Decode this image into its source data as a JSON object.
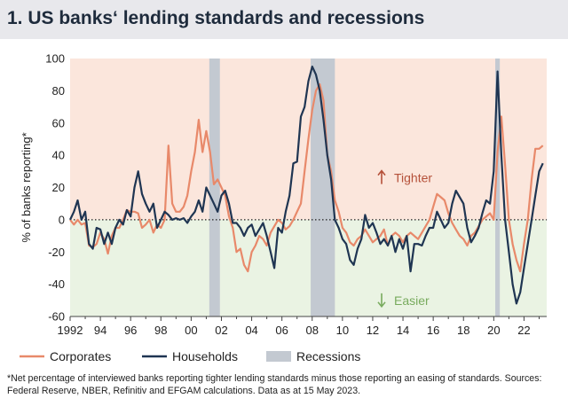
{
  "title": "1. US banks‘ lending standards and recessions",
  "footnote": "*Net percentage of interviewed banks reporting tighter lending standards minus those reporting an easing of standards. Sources: Federal Reserve, NBER, Refinitiv and EFGAM calculations. Data as at 15 May 2023.",
  "chart_data": {
    "type": "line",
    "title": "US banks' lending standards and recessions",
    "ylabel": "% of banks reporting*",
    "xlabel": "",
    "ylim": [
      -60,
      100
    ],
    "xlim": [
      1992,
      2023.5
    ],
    "yticks": [
      100,
      80,
      60,
      40,
      20,
      0,
      -20,
      -40,
      -60
    ],
    "xticks": [
      {
        "value": 1992,
        "label": "1992"
      },
      {
        "value": 1994,
        "label": "94"
      },
      {
        "value": 1996,
        "label": "96"
      },
      {
        "value": 1998,
        "label": "98"
      },
      {
        "value": 2000,
        "label": "00"
      },
      {
        "value": 2002,
        "label": "02"
      },
      {
        "value": 2004,
        "label": "04"
      },
      {
        "value": 2006,
        "label": "06"
      },
      {
        "value": 2008,
        "label": "08"
      },
      {
        "value": 2010,
        "label": "10"
      },
      {
        "value": 2012,
        "label": "12"
      },
      {
        "value": 2014,
        "label": "14"
      },
      {
        "value": 2016,
        "label": "16"
      },
      {
        "value": 2018,
        "label": "18"
      },
      {
        "value": 2020,
        "label": "20"
      },
      {
        "value": 2022,
        "label": "22"
      }
    ],
    "annotations": {
      "tighter": "Tighter",
      "easier": "Easier"
    },
    "legend": {
      "corporates": "Corporates",
      "households": "Households",
      "recessions": "Recessions"
    },
    "colors": {
      "corporates": "#e8896a",
      "households": "#1f3552",
      "recessions": "#c3c9d1",
      "tighter_zone": "#fbe6dc",
      "easier_zone": "#eaf3e3",
      "tighter_text": "#b5513a",
      "easier_text": "#78ab5e"
    },
    "recessions": [
      [
        2001.2,
        2001.9
      ],
      [
        2007.9,
        2009.5
      ],
      [
        2020.1,
        2020.4
      ]
    ],
    "series": [
      {
        "name": "Corporates",
        "points": [
          [
            1992,
            0
          ],
          [
            1992.25,
            -3
          ],
          [
            1992.5,
            0
          ],
          [
            1992.75,
            -3
          ],
          [
            1993,
            -2
          ],
          [
            1993.25,
            -16
          ],
          [
            1993.5,
            -17
          ],
          [
            1993.75,
            -15
          ],
          [
            1994,
            -8
          ],
          [
            1994.25,
            -12
          ],
          [
            1994.5,
            -21
          ],
          [
            1994.75,
            -10
          ],
          [
            1995,
            -5
          ],
          [
            1995.25,
            -5
          ],
          [
            1995.5,
            0
          ],
          [
            1995.75,
            6
          ],
          [
            1996,
            5
          ],
          [
            1996.25,
            5
          ],
          [
            1996.5,
            4
          ],
          [
            1996.75,
            -5
          ],
          [
            1997,
            -3
          ],
          [
            1997.25,
            0
          ],
          [
            1997.5,
            -8
          ],
          [
            1997.75,
            -3
          ],
          [
            1998,
            -5
          ],
          [
            1998.25,
            0
          ],
          [
            1998.5,
            46
          ],
          [
            1998.75,
            10
          ],
          [
            1999,
            5
          ],
          [
            1999.25,
            5
          ],
          [
            1999.5,
            8
          ],
          [
            1999.75,
            15
          ],
          [
            2000,
            30
          ],
          [
            2000.25,
            42
          ],
          [
            2000.5,
            62
          ],
          [
            2000.75,
            42
          ],
          [
            2001,
            55
          ],
          [
            2001.25,
            42
          ],
          [
            2001.5,
            22
          ],
          [
            2001.75,
            25
          ],
          [
            2002,
            20
          ],
          [
            2002.25,
            15
          ],
          [
            2002.5,
            2
          ],
          [
            2002.75,
            -5
          ],
          [
            2003,
            -20
          ],
          [
            2003.25,
            -18
          ],
          [
            2003.5,
            -28
          ],
          [
            2003.75,
            -32
          ],
          [
            2004,
            -20
          ],
          [
            2004.25,
            -16
          ],
          [
            2004.5,
            -10
          ],
          [
            2004.75,
            -12
          ],
          [
            2005,
            -16
          ],
          [
            2005.25,
            -8
          ],
          [
            2005.5,
            -4
          ],
          [
            2005.75,
            0
          ],
          [
            2006,
            -2
          ],
          [
            2006.25,
            -6
          ],
          [
            2006.5,
            -4
          ],
          [
            2006.75,
            0
          ],
          [
            2007,
            5
          ],
          [
            2007.25,
            10
          ],
          [
            2007.5,
            30
          ],
          [
            2007.75,
            50
          ],
          [
            2008,
            68
          ],
          [
            2008.25,
            80
          ],
          [
            2008.5,
            84
          ],
          [
            2008.75,
            74
          ],
          [
            2009,
            40
          ],
          [
            2009.25,
            30
          ],
          [
            2009.5,
            12
          ],
          [
            2009.75,
            5
          ],
          [
            2010,
            -5
          ],
          [
            2010.25,
            -8
          ],
          [
            2010.5,
            -14
          ],
          [
            2010.75,
            -16
          ],
          [
            2011,
            -12
          ],
          [
            2011.25,
            -10
          ],
          [
            2011.5,
            -6
          ],
          [
            2011.75,
            -10
          ],
          [
            2012,
            -14
          ],
          [
            2012.25,
            -12
          ],
          [
            2012.5,
            -10
          ],
          [
            2012.75,
            -6
          ],
          [
            2013,
            -16
          ],
          [
            2013.25,
            -10
          ],
          [
            2013.5,
            -8
          ],
          [
            2013.75,
            -10
          ],
          [
            2014,
            -14
          ],
          [
            2014.25,
            -10
          ],
          [
            2014.5,
            -8
          ],
          [
            2014.75,
            -10
          ],
          [
            2015,
            -12
          ],
          [
            2015.25,
            -8
          ],
          [
            2015.5,
            -4
          ],
          [
            2015.75,
            0
          ],
          [
            2016,
            8
          ],
          [
            2016.25,
            16
          ],
          [
            2016.5,
            14
          ],
          [
            2016.75,
            12
          ],
          [
            2017,
            4
          ],
          [
            2017.25,
            -2
          ],
          [
            2017.5,
            -6
          ],
          [
            2017.75,
            -10
          ],
          [
            2018,
            -12
          ],
          [
            2018.25,
            -16
          ],
          [
            2018.5,
            -10
          ],
          [
            2018.75,
            -8
          ],
          [
            2019,
            -4
          ],
          [
            2019.25,
            0
          ],
          [
            2019.5,
            2
          ],
          [
            2019.75,
            4
          ],
          [
            2020,
            0
          ],
          [
            2020.25,
            42
          ],
          [
            2020.5,
            64
          ],
          [
            2020.75,
            34
          ],
          [
            2021,
            0
          ],
          [
            2021.25,
            -15
          ],
          [
            2021.5,
            -25
          ],
          [
            2021.75,
            -32
          ],
          [
            2022,
            -15
          ],
          [
            2022.25,
            0
          ],
          [
            2022.5,
            25
          ],
          [
            2022.75,
            44
          ],
          [
            2023,
            44
          ],
          [
            2023.25,
            46
          ]
        ]
      },
      {
        "name": "Households",
        "points": [
          [
            1992,
            0
          ],
          [
            1992.25,
            5
          ],
          [
            1992.5,
            12
          ],
          [
            1992.75,
            0
          ],
          [
            1993,
            5
          ],
          [
            1993.25,
            -15
          ],
          [
            1993.5,
            -18
          ],
          [
            1993.75,
            -5
          ],
          [
            1994,
            -6
          ],
          [
            1994.25,
            -15
          ],
          [
            1994.5,
            -8
          ],
          [
            1994.75,
            -15
          ],
          [
            1995,
            -5
          ],
          [
            1995.25,
            0
          ],
          [
            1995.5,
            -3
          ],
          [
            1995.75,
            6
          ],
          [
            1996,
            2
          ],
          [
            1996.25,
            20
          ],
          [
            1996.5,
            30
          ],
          [
            1996.75,
            16
          ],
          [
            1997,
            10
          ],
          [
            1997.25,
            5
          ],
          [
            1997.5,
            10
          ],
          [
            1997.75,
            -5
          ],
          [
            1998,
            0
          ],
          [
            1998.25,
            5
          ],
          [
            1998.5,
            3
          ],
          [
            1998.75,
            0
          ],
          [
            1999,
            1
          ],
          [
            1999.25,
            0
          ],
          [
            1999.5,
            1
          ],
          [
            1999.75,
            -2
          ],
          [
            2000,
            2
          ],
          [
            2000.25,
            5
          ],
          [
            2000.5,
            12
          ],
          [
            2000.75,
            5
          ],
          [
            2001,
            20
          ],
          [
            2001.25,
            15
          ],
          [
            2001.5,
            10
          ],
          [
            2001.75,
            5
          ],
          [
            2002,
            15
          ],
          [
            2002.25,
            18
          ],
          [
            2002.5,
            10
          ],
          [
            2002.75,
            -2
          ],
          [
            2003,
            -2
          ],
          [
            2003.25,
            -5
          ],
          [
            2003.5,
            -10
          ],
          [
            2003.75,
            -5
          ],
          [
            2004,
            -3
          ],
          [
            2004.25,
            -10
          ],
          [
            2004.5,
            -6
          ],
          [
            2004.75,
            -2
          ],
          [
            2005,
            -10
          ],
          [
            2005.25,
            -20
          ],
          [
            2005.5,
            -30
          ],
          [
            2005.75,
            -5
          ],
          [
            2006,
            -8
          ],
          [
            2006.25,
            5
          ],
          [
            2006.5,
            15
          ],
          [
            2006.75,
            35
          ],
          [
            2007,
            36
          ],
          [
            2007.25,
            64
          ],
          [
            2007.5,
            70
          ],
          [
            2007.75,
            86
          ],
          [
            2008,
            95
          ],
          [
            2008.25,
            90
          ],
          [
            2008.5,
            80
          ],
          [
            2008.75,
            62
          ],
          [
            2009,
            40
          ],
          [
            2009.25,
            25
          ],
          [
            2009.5,
            0
          ],
          [
            2009.75,
            -5
          ],
          [
            2010,
            -12
          ],
          [
            2010.25,
            -15
          ],
          [
            2010.5,
            -25
          ],
          [
            2010.75,
            -28
          ],
          [
            2011,
            -18
          ],
          [
            2011.25,
            -12
          ],
          [
            2011.5,
            3
          ],
          [
            2011.75,
            -5
          ],
          [
            2012,
            -2
          ],
          [
            2012.25,
            -8
          ],
          [
            2012.5,
            -15
          ],
          [
            2012.75,
            -12
          ],
          [
            2013,
            -16
          ],
          [
            2013.25,
            -10
          ],
          [
            2013.5,
            -20
          ],
          [
            2013.75,
            -12
          ],
          [
            2014,
            -18
          ],
          [
            2014.25,
            -10
          ],
          [
            2014.5,
            -32
          ],
          [
            2014.75,
            -15
          ],
          [
            2015,
            -15
          ],
          [
            2015.25,
            -16
          ],
          [
            2015.5,
            -10
          ],
          [
            2015.75,
            -5
          ],
          [
            2016,
            -5
          ],
          [
            2016.25,
            5
          ],
          [
            2016.5,
            0
          ],
          [
            2016.75,
            -5
          ],
          [
            2017,
            -2
          ],
          [
            2017.25,
            10
          ],
          [
            2017.5,
            18
          ],
          [
            2017.75,
            14
          ],
          [
            2018,
            10
          ],
          [
            2018.25,
            -5
          ],
          [
            2018.5,
            -14
          ],
          [
            2018.75,
            -10
          ],
          [
            2019,
            -5
          ],
          [
            2019.25,
            4
          ],
          [
            2019.5,
            12
          ],
          [
            2019.75,
            10
          ],
          [
            2020,
            30
          ],
          [
            2020.25,
            92
          ],
          [
            2020.5,
            40
          ],
          [
            2020.75,
            0
          ],
          [
            2021,
            -20
          ],
          [
            2021.25,
            -40
          ],
          [
            2021.5,
            -52
          ],
          [
            2021.75,
            -45
          ],
          [
            2022,
            -30
          ],
          [
            2022.25,
            -15
          ],
          [
            2022.5,
            0
          ],
          [
            2022.75,
            15
          ],
          [
            2023,
            30
          ],
          [
            2023.25,
            35
          ]
        ]
      }
    ]
  }
}
